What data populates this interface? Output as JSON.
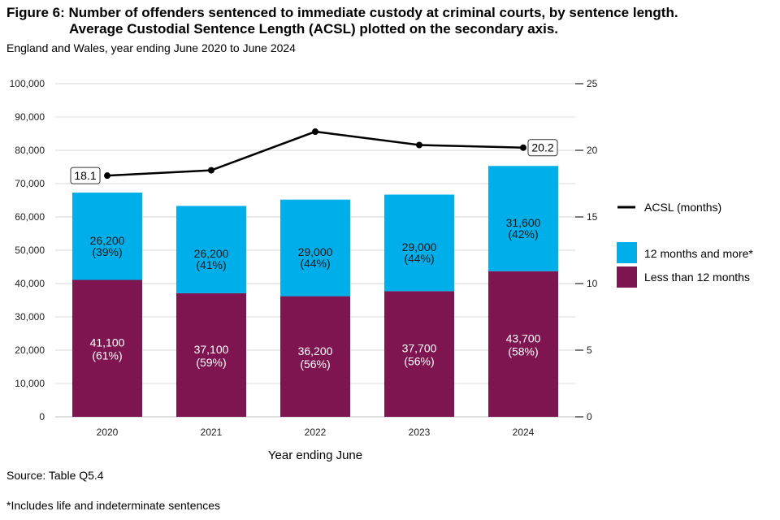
{
  "title_line1": "Figure 6: Number of offenders sentenced to immediate custody at criminal courts, by sentence length.",
  "title_line2": "Average Custodial Sentence Length (ACSL) plotted on the secondary axis.",
  "subtitle": "England and Wales, year ending June 2020 to June 2024",
  "source": "Source: Table Q5.4",
  "footnote": "*Includes life and indeterminate sentences",
  "colors": {
    "less_than_12": "#7e1550",
    "twelve_plus": "#00aeea",
    "acsl_line": "#000000",
    "grid": "#d9d9d9"
  },
  "chart_data": {
    "type": "bar",
    "stacked": true,
    "categories": [
      "2020",
      "2021",
      "2022",
      "2023",
      "2024"
    ],
    "xlabel": "Year ending June",
    "ylabel": "",
    "ylim": [
      0,
      100000
    ],
    "y_ticks": [
      "0",
      "10,000",
      "20,000",
      "30,000",
      "40,000",
      "50,000",
      "60,000",
      "70,000",
      "80,000",
      "90,000",
      "100,000"
    ],
    "y2lim": [
      0,
      25
    ],
    "y2_ticks": [
      "0",
      "5",
      "10",
      "15",
      "20",
      "25"
    ],
    "grid": true,
    "legend_position": "right",
    "series": [
      {
        "name": "Less than 12 months",
        "values": [
          41100,
          37100,
          36200,
          37700,
          43700
        ],
        "labels": [
          "41,100",
          "37,100",
          "36,200",
          "37,700",
          "43,700"
        ],
        "percents": [
          "(61%)",
          "(59%)",
          "(56%)",
          "(56%)",
          "(58%)"
        ]
      },
      {
        "name": "12 months and more*",
        "values": [
          26200,
          26200,
          29000,
          29000,
          31600
        ],
        "labels": [
          "26,200",
          "26,200",
          "29,000",
          "29,000",
          "31,600"
        ],
        "percents": [
          "(39%)",
          "(41%)",
          "(44%)",
          "(44%)",
          "(42%)"
        ]
      }
    ],
    "line_series": {
      "name": "ACSL (months)",
      "axis": "secondary",
      "values": [
        18.1,
        18.5,
        21.4,
        20.4,
        20.2
      ],
      "callouts": [
        "18.1",
        "",
        "",
        "",
        "20.2"
      ]
    }
  }
}
